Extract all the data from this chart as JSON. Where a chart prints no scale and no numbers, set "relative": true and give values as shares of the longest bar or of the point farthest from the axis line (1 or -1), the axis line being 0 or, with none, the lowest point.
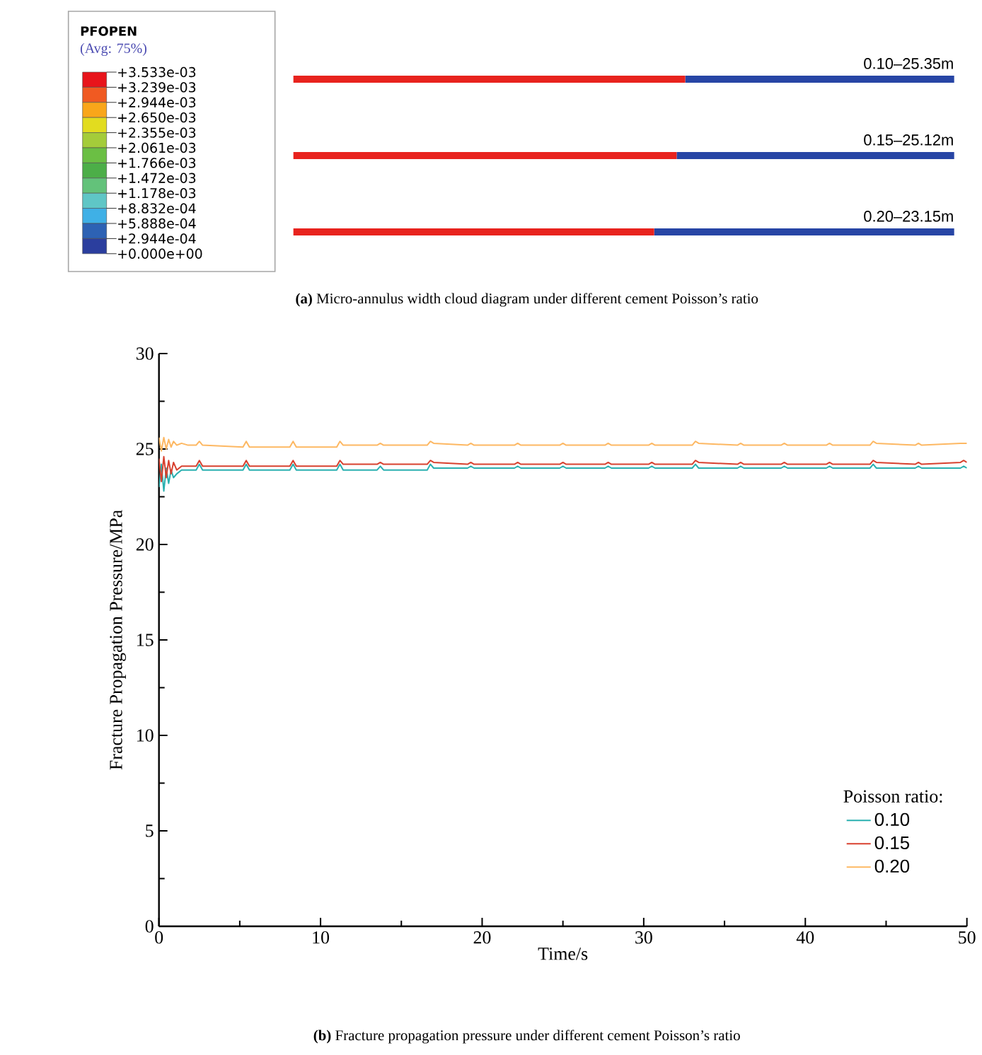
{
  "chart_data": [
    {
      "type": "other",
      "title": "PFOPEN",
      "subtitle": "(Avg: 75%)",
      "categories": [
        "+3.533e-03",
        "+3.239e-03",
        "+2.944e-03",
        "+2.650e-03",
        "+2.355e-03",
        "+2.061e-03",
        "+1.766e-03",
        "+1.472e-03",
        "+1.178e-03",
        "+8.832e-04",
        "+5.888e-04",
        "+2.944e-04",
        "+0.000e+00"
      ],
      "colors": [
        "#e8141b",
        "#f05a22",
        "#f9a61a",
        "#e2dc1f",
        "#a4cc3a",
        "#6bbf44",
        "#4cae48",
        "#63c27a",
        "#5fc6c6",
        "#3fb0e6",
        "#2d62b4",
        "#2b3e9e"
      ]
    },
    {
      "type": "bar",
      "orientation": "horizontal",
      "stacked": true,
      "relative": true,
      "categories": [
        null,
        null,
        null
      ],
      "series": [
        {
          "color": "#e8231e",
          "values": [
            0.593,
            0.58,
            0.546
          ]
        },
        {
          "color": "#2745a5",
          "values": [
            0.407,
            0.42,
            0.454
          ]
        }
      ],
      "annotations": [
        "0.10–25.35m",
        "0.15–25.12m",
        "0.20–23.15m",
        "**(a)** Micro-annulus width cloud diagram under different cement Poisson’s ratio"
      ]
    },
    {
      "type": "line",
      "xlabel": "Time/s",
      "ylabel": "Fracture Propagation Pressure/MPa",
      "legend_title": "Poisson ratio:",
      "legend": "bottom right",
      "marker": "none",
      "line_style": "solid",
      "xlim": [
        0,
        50
      ],
      "xticks": [
        0,
        10,
        20,
        30,
        40,
        50
      ],
      "ylim": [
        0,
        30
      ],
      "yticks": [
        0,
        5,
        10,
        15,
        20,
        25,
        30
      ],
      "x": [
        0,
        0.15,
        0.3,
        0.45,
        0.6,
        0.75,
        0.9,
        1.1,
        1.4,
        1.8,
        2.3,
        2.5,
        2.7,
        5.2,
        5.4,
        5.6,
        8.1,
        8.3,
        8.5,
        11.0,
        11.2,
        11.4,
        13.5,
        13.7,
        13.9,
        16.6,
        16.8,
        17.0,
        19.1,
        19.3,
        19.5,
        22.0,
        22.2,
        22.4,
        24.8,
        25.0,
        25.2,
        27.6,
        27.8,
        28.0,
        30.3,
        30.5,
        30.7,
        33.0,
        33.2,
        33.4,
        35.8,
        36.0,
        36.2,
        38.5,
        38.7,
        38.9,
        41.3,
        41.5,
        41.7,
        44.0,
        44.2,
        44.4,
        46.8,
        47.0,
        47.2,
        49.6,
        49.8,
        50
      ],
      "series": [
        {
          "name": "0.10",
          "color": "#2ab0b0",
          "values": [
            23.0,
            24.2,
            22.8,
            24.0,
            23.2,
            23.9,
            23.5,
            23.7,
            23.9,
            23.9,
            23.9,
            24.2,
            23.9,
            23.9,
            24.2,
            23.9,
            23.9,
            24.2,
            23.9,
            23.9,
            24.2,
            23.9,
            23.9,
            24.1,
            23.9,
            23.9,
            24.2,
            24.0,
            24.0,
            24.1,
            24.0,
            24.0,
            24.1,
            24.0,
            24.0,
            24.1,
            24.0,
            24.0,
            24.1,
            24.0,
            24.0,
            24.1,
            24.0,
            24.0,
            24.2,
            24.0,
            24.0,
            24.1,
            24.0,
            24.0,
            24.1,
            24.0,
            24.0,
            24.1,
            24.0,
            24.0,
            24.2,
            24.0,
            24.0,
            24.1,
            24.0,
            24.0,
            24.1,
            24.0
          ]
        },
        {
          "name": "0.15",
          "color": "#d8412f",
          "values": [
            24.5,
            23.3,
            24.6,
            23.5,
            24.4,
            23.7,
            24.3,
            23.9,
            24.1,
            24.1,
            24.1,
            24.4,
            24.1,
            24.1,
            24.4,
            24.1,
            24.1,
            24.4,
            24.1,
            24.1,
            24.4,
            24.2,
            24.2,
            24.3,
            24.2,
            24.2,
            24.4,
            24.3,
            24.2,
            24.3,
            24.2,
            24.2,
            24.3,
            24.2,
            24.2,
            24.3,
            24.2,
            24.2,
            24.3,
            24.2,
            24.2,
            24.3,
            24.2,
            24.2,
            24.4,
            24.3,
            24.2,
            24.3,
            24.2,
            24.2,
            24.3,
            24.2,
            24.2,
            24.3,
            24.2,
            24.2,
            24.4,
            24.3,
            24.2,
            24.3,
            24.2,
            24.3,
            24.4,
            24.3
          ]
        },
        {
          "name": "0.20",
          "color": "#fdb863",
          "values": [
            25.6,
            24.9,
            25.6,
            25.0,
            25.5,
            25.1,
            25.4,
            25.2,
            25.3,
            25.2,
            25.2,
            25.4,
            25.2,
            25.1,
            25.4,
            25.1,
            25.1,
            25.4,
            25.1,
            25.1,
            25.4,
            25.2,
            25.2,
            25.3,
            25.2,
            25.2,
            25.4,
            25.3,
            25.2,
            25.3,
            25.2,
            25.2,
            25.3,
            25.2,
            25.2,
            25.3,
            25.2,
            25.2,
            25.3,
            25.2,
            25.2,
            25.3,
            25.2,
            25.2,
            25.4,
            25.3,
            25.2,
            25.3,
            25.2,
            25.2,
            25.3,
            25.2,
            25.2,
            25.3,
            25.2,
            25.2,
            25.4,
            25.3,
            25.2,
            25.3,
            25.2,
            25.3,
            25.3,
            25.3
          ]
        }
      ],
      "annotations": [
        "**(b)** Fracture propagation pressure under different cement Poisson’s ratio"
      ]
    }
  ]
}
